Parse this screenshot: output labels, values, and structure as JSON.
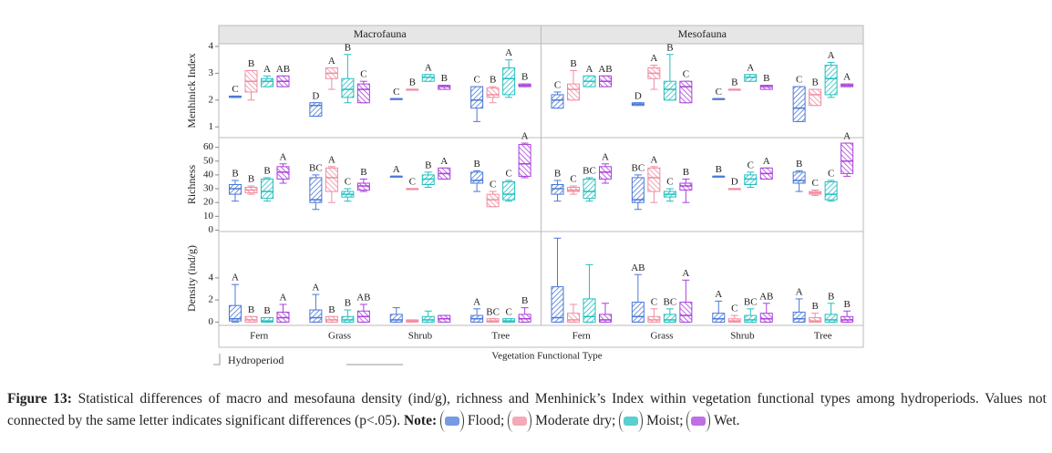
{
  "figure": {
    "xlabel": "Vegetation Functional Type",
    "legend_title": "Hydroperiod"
  },
  "chart_data": [
    {
      "type": "box",
      "title": "Macrofauna",
      "ylabel": "Menhinick Index",
      "ylim": [
        0.6,
        4.1
      ],
      "yticks": [
        1,
        2,
        3,
        4
      ],
      "series": [
        {
          "color": "#4a78d8",
          "values": [
            [
              2.1,
              2.1,
              2.12,
              2.15,
              2.15
            ],
            [
              1.4,
              1.4,
              1.8,
              1.9,
              1.9
            ],
            [
              2.05,
              2.05,
              2.05,
              2.05,
              2.05
            ],
            [
              1.2,
              1.7,
              2.0,
              2.5,
              2.5
            ]
          ],
          "labels": [
            "C",
            "D",
            "C",
            "C"
          ]
        },
        {
          "color": "#f08ca0",
          "values": [
            [
              2.0,
              2.3,
              2.7,
              3.1,
              3.1
            ],
            [
              2.4,
              2.8,
              3.0,
              3.2,
              3.2
            ],
            [
              2.4,
              2.4,
              2.4,
              2.4,
              2.4
            ],
            [
              1.9,
              2.1,
              2.2,
              2.45,
              2.5
            ]
          ],
          "labels": [
            "B",
            "A",
            "B",
            "B"
          ]
        },
        {
          "color": "#22bfc0",
          "values": [
            [
              2.5,
              2.5,
              2.7,
              2.8,
              2.9
            ],
            [
              1.9,
              2.1,
              2.4,
              2.8,
              3.7
            ],
            [
              2.7,
              2.7,
              2.85,
              2.95,
              2.95
            ],
            [
              2.1,
              2.2,
              2.8,
              3.2,
              3.5
            ]
          ],
          "labels": [
            "A",
            "B",
            "A",
            "A"
          ]
        },
        {
          "color": "#a93fdc",
          "values": [
            [
              2.5,
              2.5,
              2.7,
              2.9,
              2.9
            ],
            [
              1.9,
              1.9,
              2.4,
              2.6,
              2.7
            ],
            [
              2.4,
              2.4,
              2.5,
              2.55,
              2.55
            ],
            [
              2.5,
              2.5,
              2.55,
              2.6,
              2.6
            ]
          ],
          "labels": [
            "AB",
            "C",
            "B",
            "B"
          ]
        }
      ]
    },
    {
      "type": "box",
      "title": "Mesofauna",
      "ylim": [
        0.6,
        4.1
      ],
      "series": [
        {
          "color": "#4a78d8",
          "values": [
            [
              1.7,
              1.7,
              2.0,
              2.2,
              2.3
            ],
            [
              1.8,
              1.8,
              1.85,
              1.9,
              1.9
            ],
            [
              2.05,
              2.05,
              2.05,
              2.05,
              2.05
            ],
            [
              1.2,
              1.2,
              1.7,
              2.5,
              2.5
            ]
          ],
          "labels": [
            "C",
            "D",
            "C",
            "C"
          ]
        },
        {
          "color": "#f08ca0",
          "values": [
            [
              2.0,
              2.0,
              2.4,
              2.6,
              3.1
            ],
            [
              2.4,
              2.8,
              3.0,
              3.2,
              3.3
            ],
            [
              2.4,
              2.4,
              2.4,
              2.4,
              2.4
            ],
            [
              1.8,
              1.8,
              2.2,
              2.4,
              2.4
            ]
          ],
          "labels": [
            "B",
            "A",
            "B",
            "B"
          ]
        },
        {
          "color": "#22bfc0",
          "values": [
            [
              2.5,
              2.5,
              2.7,
              2.9,
              2.9
            ],
            [
              2.0,
              2.0,
              2.4,
              2.7,
              3.7
            ],
            [
              2.7,
              2.7,
              2.85,
              2.95,
              2.95
            ],
            [
              2.1,
              2.2,
              2.8,
              3.3,
              3.4
            ]
          ],
          "labels": [
            "A",
            "B",
            "A",
            "A"
          ]
        },
        {
          "color": "#a93fdc",
          "values": [
            [
              2.5,
              2.5,
              2.7,
              2.9,
              2.9
            ],
            [
              1.9,
              1.9,
              2.5,
              2.7,
              2.7
            ],
            [
              2.4,
              2.4,
              2.5,
              2.55,
              2.55
            ],
            [
              2.5,
              2.5,
              2.55,
              2.6,
              2.6
            ]
          ],
          "labels": [
            "AB",
            "C",
            "B",
            "A"
          ]
        }
      ]
    },
    {
      "type": "box",
      "ylabel": "Richness",
      "ylim": [
        -1,
        67
      ],
      "yticks": [
        0,
        10,
        20,
        30,
        40,
        50,
        60
      ],
      "series": [
        {
          "color": "#4a78d8",
          "values": [
            [
              21,
              26,
              30,
              33,
              36
            ],
            [
              15,
              20,
              22,
              38,
              40
            ],
            [
              39,
              39,
              39,
              39,
              39
            ],
            [
              28,
              34,
              36,
              42,
              43
            ]
          ],
          "labels": [
            "B",
            "BC",
            "A",
            "B"
          ]
        },
        {
          "color": "#f08ca0",
          "values": [
            [
              26,
              27,
              29,
              31,
              32
            ],
            [
              20,
              28,
              38,
              45,
              46
            ],
            [
              30,
              30,
              30,
              30,
              30
            ],
            [
              17,
              17,
              22,
              26,
              28
            ]
          ],
          "labels": [
            "B",
            "A",
            "C",
            "C"
          ]
        },
        {
          "color": "#22bfc0",
          "values": [
            [
              21,
              23,
              28,
              37,
              38
            ],
            [
              21,
              24,
              26,
              28,
              30
            ],
            [
              31,
              33,
              37,
              40,
              42
            ],
            [
              21,
              22,
              26,
              35,
              36
            ]
          ],
          "labels": [
            "B",
            "C",
            "B",
            "C"
          ]
        },
        {
          "color": "#a93fdc",
          "values": [
            [
              34,
              37,
              42,
              46,
              48
            ],
            [
              28,
              29,
              32,
              34,
              37
            ],
            [
              37,
              37,
              41,
              45,
              45
            ],
            [
              38,
              39,
              48,
              62,
              63
            ]
          ],
          "labels": [
            "A",
            "B",
            "A",
            "A"
          ]
        }
      ]
    },
    {
      "type": "box",
      "ylim": [
        -1,
        67
      ],
      "series": [
        {
          "color": "#4a78d8",
          "values": [
            [
              21,
              26,
              30,
              33,
              36
            ],
            [
              15,
              20,
              22,
              38,
              40
            ],
            [
              39,
              39,
              39,
              39,
              39
            ],
            [
              28,
              34,
              36,
              42,
              43
            ]
          ],
          "labels": [
            "B",
            "BC",
            "B",
            "B"
          ]
        },
        {
          "color": "#f08ca0",
          "values": [
            [
              26,
              28,
              29,
              31,
              32
            ],
            [
              20,
              28,
              38,
              45,
              46
            ],
            [
              30,
              30,
              30,
              30,
              30
            ],
            [
              25,
              26,
              27,
              28,
              29
            ]
          ],
          "labels": [
            "C",
            "A",
            "D",
            "C"
          ]
        },
        {
          "color": "#22bfc0",
          "values": [
            [
              21,
              23,
              28,
              37,
              38
            ],
            [
              21,
              24,
              26,
              28,
              30
            ],
            [
              31,
              33,
              37,
              40,
              42
            ],
            [
              21,
              22,
              26,
              35,
              36
            ]
          ],
          "labels": [
            "BC",
            "C",
            "C",
            "C"
          ]
        },
        {
          "color": "#a93fdc",
          "values": [
            [
              34,
              37,
              42,
              46,
              48
            ],
            [
              20,
              29,
              32,
              34,
              37
            ],
            [
              37,
              37,
              41,
              45,
              45
            ],
            [
              39,
              41,
              50,
              63,
              63
            ]
          ],
          "labels": [
            "A",
            "B",
            "A",
            "A"
          ]
        }
      ]
    },
    {
      "type": "box",
      "ylabel": "Density (ind/g)",
      "ylim": [
        -0.3,
        8.2
      ],
      "yticks": [
        0,
        2,
        4
      ],
      "categories": [
        "Fern",
        "Grass",
        "Shrub",
        "Tree"
      ],
      "series": [
        {
          "color": "#4a78d8",
          "values": [
            [
              0,
              0.1,
              0.3,
              1.5,
              3.4
            ],
            [
              0,
              0,
              0.4,
              1.1,
              2.5
            ],
            [
              0,
              0,
              0.2,
              0.7,
              1.3
            ],
            [
              0,
              0,
              0.3,
              0.6,
              1.2
            ]
          ],
          "labels": [
            "A",
            "A",
            null,
            "A"
          ]
        },
        {
          "color": "#f08ca0",
          "values": [
            [
              0,
              0,
              0.2,
              0.5,
              0.5
            ],
            [
              0,
              0,
              0.2,
              0.5,
              0.5
            ],
            [
              0,
              0,
              0.1,
              0.2,
              0.2
            ],
            [
              0,
              0,
              0.1,
              0.3,
              0.3
            ]
          ],
          "labels": [
            "B",
            "B",
            null,
            "BC"
          ]
        },
        {
          "color": "#22bfc0",
          "values": [
            [
              0,
              0,
              0.1,
              0.4,
              0.4
            ],
            [
              0,
              0,
              0.2,
              0.5,
              1.1
            ],
            [
              0,
              0,
              0.2,
              0.5,
              1.0
            ],
            [
              0,
              0,
              0.1,
              0.3,
              0.3
            ]
          ],
          "labels": [
            "B",
            "B",
            null,
            "C"
          ]
        },
        {
          "color": "#a93fdc",
          "values": [
            [
              0,
              0,
              0.4,
              0.9,
              1.6
            ],
            [
              0,
              0,
              0.5,
              1.0,
              1.6
            ],
            [
              0,
              0,
              0.3,
              0.6,
              0.6
            ],
            [
              0,
              0,
              0.3,
              0.7,
              1.3
            ]
          ],
          "labels": [
            "A",
            "AB",
            null,
            "B"
          ]
        }
      ]
    },
    {
      "type": "box",
      "ylim": [
        -0.3,
        8.2
      ],
      "categories": [
        "Fern",
        "Grass",
        "Shrub",
        "Tree"
      ],
      "series": [
        {
          "color": "#4a78d8",
          "values": [
            [
              0,
              0,
              0.4,
              3.2,
              7.6
            ],
            [
              0,
              0,
              0.5,
              1.8,
              4.3
            ],
            [
              0,
              0,
              0.3,
              0.8,
              1.9
            ],
            [
              0,
              0,
              0.3,
              0.9,
              2.1
            ]
          ],
          "labels": [
            null,
            "AB",
            "A",
            "A"
          ]
        },
        {
          "color": "#f08ca0",
          "values": [
            [
              0,
              0,
              0.2,
              0.8,
              1.6
            ],
            [
              0,
              0,
              0.2,
              0.5,
              1.2
            ],
            [
              0,
              0,
              0.1,
              0.3,
              0.6
            ],
            [
              0,
              0,
              0.1,
              0.4,
              0.8
            ]
          ],
          "labels": [
            null,
            "C",
            "C",
            "B"
          ]
        },
        {
          "color": "#22bfc0",
          "values": [
            [
              0,
              0,
              0.5,
              2.1,
              5.2
            ],
            [
              0,
              0,
              0.2,
              0.7,
              1.2
            ],
            [
              0,
              0,
              0.2,
              0.6,
              1.2
            ],
            [
              0,
              0,
              0.2,
              0.7,
              1.7
            ]
          ],
          "labels": [
            null,
            "BC",
            "BC",
            "B"
          ]
        },
        {
          "color": "#a93fdc",
          "values": [
            [
              0,
              0,
              0.2,
              0.7,
              1.7
            ],
            [
              0,
              0,
              0.6,
              1.8,
              3.8
            ],
            [
              0,
              0,
              0.3,
              0.8,
              1.7
            ],
            [
              0,
              0,
              0.2,
              0.5,
              1.0
            ]
          ],
          "labels": [
            null,
            "A",
            "AB",
            "B"
          ]
        }
      ]
    }
  ],
  "caption": {
    "label": "Figure 13:",
    "text": "Statistical differences of macro and mesofauna density (ind/g), richness and Menhinick’s Index within vegetation functional types among hydroperiods. Values not connected by the same letter indicates significant differences (p<.05).",
    "note": "Note:",
    "legend": [
      "Flood;",
      "Moderate dry;",
      "Moist;",
      "Wet."
    ]
  }
}
